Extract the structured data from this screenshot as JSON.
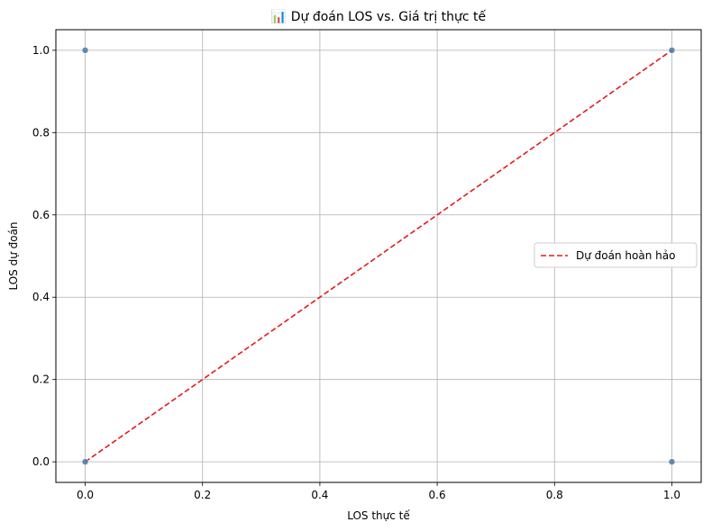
{
  "chart_data": {
    "type": "scatter",
    "title": "📊 Dự đoán LOS vs. Giá trị thực tế",
    "xlabel": "LOS thực tế",
    "ylabel": "LOS dự đoán",
    "xlim": [
      -0.05,
      1.05
    ],
    "ylim": [
      -0.05,
      1.05
    ],
    "xticks": [
      "0.0",
      "0.2",
      "0.4",
      "0.6",
      "0.8",
      "1.0"
    ],
    "yticks": [
      "0.0",
      "0.2",
      "0.4",
      "0.6",
      "0.8",
      "1.0"
    ],
    "grid": true,
    "legend_position": "center-right",
    "points": [
      {
        "x": 0,
        "y": 0
      },
      {
        "x": 0,
        "y": 1
      },
      {
        "x": 1,
        "y": 1
      },
      {
        "x": 1,
        "y": 0
      }
    ],
    "reference_line": {
      "name": "Dự đoán hoàn hảo",
      "x": [
        0,
        1
      ],
      "y": [
        0,
        1
      ],
      "color": "#e31a1c",
      "style": "dashed"
    },
    "point_color": "#4a7ba6"
  }
}
